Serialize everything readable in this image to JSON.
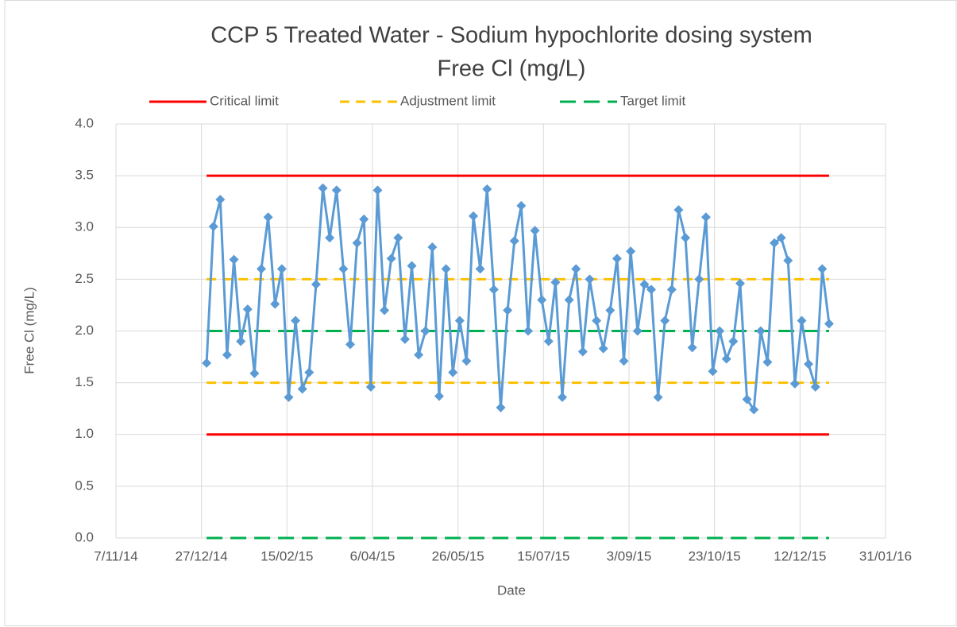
{
  "chart_data": {
    "type": "line",
    "title": "CCP 5 Treated Water - Sodium hypochlorite dosing system",
    "subtitle": "Free Cl (mg/L)",
    "x_label": "Date",
    "y_label": "Free Cl (mg/L)",
    "x": [
      "2014-12-30",
      "2015-01-03",
      "2015-01-07",
      "2015-01-11",
      "2015-01-15",
      "2015-01-19",
      "2015-01-23",
      "2015-01-27",
      "2015-01-31",
      "2015-02-04",
      "2015-02-08",
      "2015-02-12",
      "2015-02-16",
      "2015-02-20",
      "2015-02-24",
      "2015-02-28",
      "2015-03-04",
      "2015-03-08",
      "2015-03-12",
      "2015-03-16",
      "2015-03-20",
      "2015-03-24",
      "2015-03-28",
      "2015-04-01",
      "2015-04-05",
      "2015-04-09",
      "2015-04-13",
      "2015-04-17",
      "2015-04-21",
      "2015-04-25",
      "2015-04-29",
      "2015-05-03",
      "2015-05-07",
      "2015-05-11",
      "2015-05-15",
      "2015-05-19",
      "2015-05-23",
      "2015-05-27",
      "2015-05-31",
      "2015-06-04",
      "2015-06-08",
      "2015-06-12",
      "2015-06-16",
      "2015-06-20",
      "2015-06-24",
      "2015-06-28",
      "2015-07-02",
      "2015-07-06",
      "2015-07-10",
      "2015-07-14",
      "2015-07-18",
      "2015-07-22",
      "2015-07-26",
      "2015-07-30",
      "2015-08-03",
      "2015-08-07",
      "2015-08-11",
      "2015-08-15",
      "2015-08-19",
      "2015-08-23",
      "2015-08-27",
      "2015-08-31",
      "2015-09-04",
      "2015-09-08",
      "2015-09-12",
      "2015-09-16",
      "2015-09-20",
      "2015-09-24",
      "2015-09-28",
      "2015-10-02",
      "2015-10-06",
      "2015-10-10",
      "2015-10-14",
      "2015-10-18",
      "2015-10-22",
      "2015-10-26",
      "2015-10-30",
      "2015-11-03",
      "2015-11-07",
      "2015-11-11",
      "2015-11-15",
      "2015-11-19",
      "2015-11-23",
      "2015-11-27",
      "2015-12-01",
      "2015-12-05",
      "2015-12-09",
      "2015-12-13",
      "2015-12-17",
      "2015-12-21",
      "2015-12-25",
      "2015-12-29"
    ],
    "series": [
      {
        "color": "#5b9bd5",
        "values": [
          1.69,
          3.01,
          3.27,
          1.77,
          2.69,
          1.9,
          2.21,
          1.59,
          2.6,
          3.1,
          2.26,
          2.6,
          1.36,
          2.1,
          1.44,
          1.6,
          2.45,
          3.38,
          2.9,
          3.36,
          2.6,
          1.87,
          2.85,
          3.08,
          1.46,
          3.36,
          2.2,
          2.7,
          2.9,
          1.92,
          2.63,
          1.77,
          2.0,
          2.81,
          1.37,
          2.6,
          1.6,
          2.1,
          1.71,
          3.11,
          2.6,
          3.37,
          2.4,
          1.26,
          2.2,
          2.87,
          3.21,
          2.0,
          2.97,
          2.3,
          1.9,
          2.47,
          1.36,
          2.3,
          2.6,
          1.8,
          2.5,
          2.1,
          1.83,
          2.2,
          2.7,
          1.71,
          2.77,
          2.0,
          2.45,
          2.4,
          1.36,
          2.1,
          2.4,
          3.17,
          2.9,
          1.84,
          2.5,
          3.1,
          1.61,
          2.0,
          1.73,
          1.9,
          2.46,
          1.34,
          1.24,
          2.0,
          1.7,
          2.85,
          2.9,
          2.68,
          1.49,
          2.1,
          1.68,
          1.46,
          2.6,
          2.07
        ]
      }
    ],
    "limits": [
      {
        "name": "Critical limit",
        "color": "#ff0000",
        "dash": "solid",
        "levels": [
          3.5,
          1.0
        ]
      },
      {
        "name": "Adjustment limit",
        "color": "#ffc000",
        "dash": "short-dash",
        "levels": [
          2.5,
          1.5
        ]
      },
      {
        "name": "Target limit",
        "color": "#00b050",
        "dash": "long-dash",
        "levels": [
          2.0,
          0
        ]
      }
    ],
    "xlim": [
      "2014-11-07",
      "2016-01-31"
    ],
    "xticks": [
      {
        "value": "2014-11-07",
        "label": "7/11/14"
      },
      {
        "value": "2014-12-27",
        "label": "27/12/14"
      },
      {
        "value": "2015-02-15",
        "label": "15/02/15"
      },
      {
        "value": "2015-04-06",
        "label": "6/04/15"
      },
      {
        "value": "2015-05-26",
        "label": "26/05/15"
      },
      {
        "value": "2015-07-15",
        "label": "15/07/15"
      },
      {
        "value": "2015-09-03",
        "label": "3/09/15"
      },
      {
        "value": "2015-10-23",
        "label": "23/10/15"
      },
      {
        "value": "2015-12-12",
        "label": "12/12/15"
      },
      {
        "value": "2016-01-31",
        "label": "31/01/16"
      }
    ],
    "ylim": [
      0,
      4
    ],
    "yticks": [
      {
        "value": 0,
        "label": "0.0"
      },
      0.5,
      {
        "value": 1,
        "label": "1.0"
      },
      1.5,
      {
        "value": 2,
        "label": "2.0"
      },
      2.5,
      {
        "value": 3,
        "label": "3.0"
      },
      3.5,
      {
        "value": 4,
        "label": "4.0"
      }
    ],
    "grid": true,
    "legend": "top"
  }
}
